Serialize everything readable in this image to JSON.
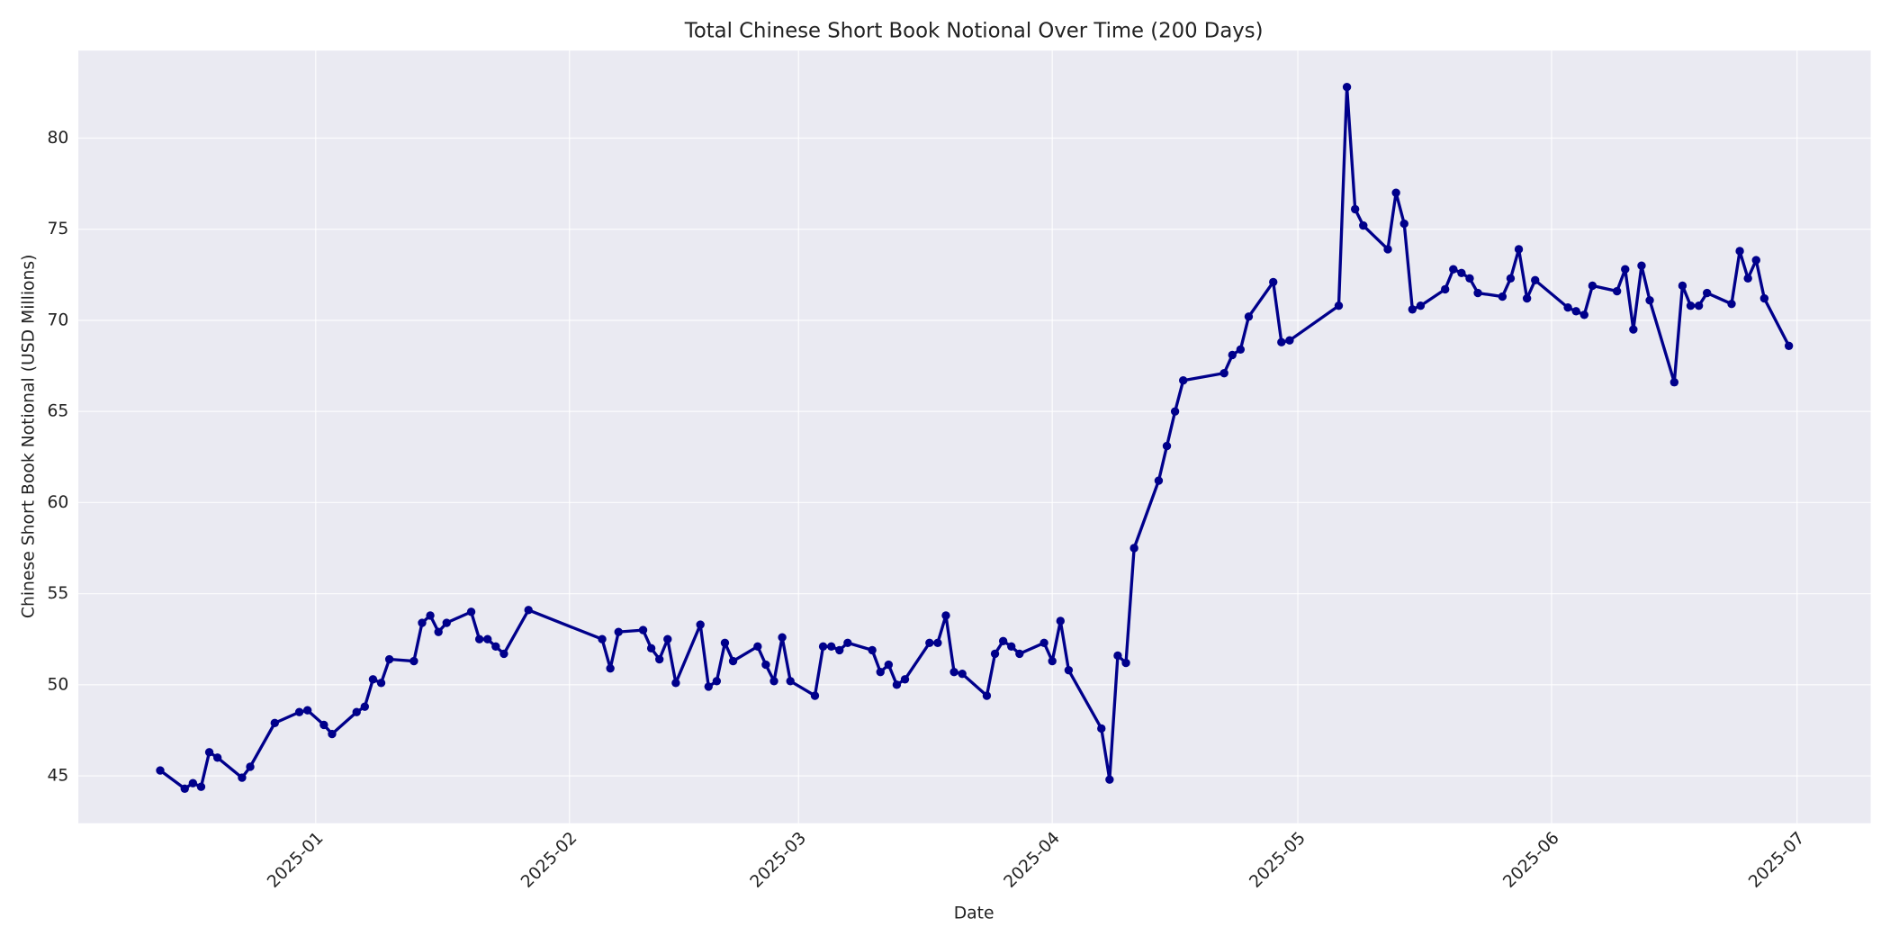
{
  "chart_data": {
    "type": "line",
    "title": "Total Chinese Short Book Notional Over Time (200 Days)",
    "x_label": "Date",
    "y_label": "Chinese Short Book Notional (USD Millions)",
    "color": "#00008b",
    "grid": true,
    "x": [
      -19,
      -16,
      -15,
      -14,
      -13,
      -12,
      -9,
      -8,
      -5,
      -2,
      -1,
      1,
      2,
      5,
      6,
      7,
      8,
      9,
      12,
      13,
      14,
      15,
      16,
      19,
      20,
      21,
      22,
      23,
      26,
      35,
      36,
      37,
      40,
      41,
      42,
      43,
      44,
      47,
      48,
      49,
      50,
      51,
      54,
      55,
      56,
      57,
      58,
      61,
      62,
      63,
      64,
      65,
      68,
      69,
      70,
      71,
      72,
      75,
      76,
      77,
      78,
      79,
      82,
      83,
      84,
      85,
      86,
      89,
      90,
      91,
      92,
      96,
      97,
      98,
      99,
      100,
      103,
      104,
      105,
      106,
      111,
      112,
      113,
      114,
      117,
      118,
      119,
      125,
      126,
      127,
      128,
      131,
      132,
      133,
      134,
      135,
      138,
      139,
      140,
      141,
      142,
      145,
      146,
      147,
      148,
      149,
      153,
      154,
      155,
      156,
      159,
      160,
      161,
      162,
      163,
      166,
      167,
      168,
      169,
      170,
      173,
      174,
      175,
      176,
      177,
      180
    ],
    "values": [
      45.3,
      44.3,
      44.6,
      44.4,
      46.3,
      46.0,
      44.9,
      45.5,
      47.9,
      48.5,
      48.6,
      47.8,
      47.3,
      48.5,
      48.8,
      50.3,
      50.1,
      51.4,
      51.3,
      53.4,
      53.8,
      52.9,
      53.4,
      54.0,
      52.5,
      52.5,
      52.1,
      51.7,
      54.1,
      52.5,
      50.9,
      52.9,
      53.0,
      52.0,
      51.4,
      52.5,
      50.1,
      53.3,
      49.9,
      50.2,
      52.3,
      51.3,
      52.1,
      51.1,
      50.2,
      52.6,
      50.2,
      49.4,
      52.1,
      52.1,
      51.9,
      52.3,
      51.9,
      50.7,
      51.1,
      50.0,
      50.3,
      52.3,
      52.3,
      53.8,
      50.7,
      50.6,
      49.4,
      51.7,
      52.4,
      52.1,
      51.7,
      52.3,
      51.3,
      53.5,
      50.8,
      47.6,
      44.8,
      51.6,
      51.2,
      57.5,
      61.2,
      63.1,
      65.0,
      66.7,
      67.1,
      68.1,
      68.4,
      70.2,
      72.1,
      68.8,
      68.9,
      70.8,
      82.8,
      76.1,
      75.2,
      73.9,
      77.0,
      75.3,
      70.6,
      70.8,
      71.7,
      72.8,
      72.6,
      72.3,
      71.5,
      71.3,
      72.3,
      73.9,
      71.2,
      72.2,
      70.7,
      70.5,
      70.3,
      71.9,
      71.6,
      72.8,
      69.5,
      73.0,
      71.1,
      66.6,
      71.9,
      70.8,
      70.8,
      71.5,
      70.9,
      73.8,
      72.3,
      73.3,
      71.2,
      68.6
    ],
    "xlim": [
      -29,
      190
    ],
    "xticks": [
      {
        "value": 0,
        "label": "2025-01"
      },
      {
        "value": 31,
        "label": "2025-02"
      },
      {
        "value": 59,
        "label": "2025-03"
      },
      {
        "value": 90,
        "label": "2025-04"
      },
      {
        "value": 120,
        "label": "2025-05"
      },
      {
        "value": 151,
        "label": "2025-06"
      },
      {
        "value": 181,
        "label": "2025-07"
      }
    ],
    "ylim": [
      42.4,
      84.8
    ],
    "yticks": [
      45,
      50,
      55,
      60,
      65,
      70,
      75,
      80
    ]
  }
}
